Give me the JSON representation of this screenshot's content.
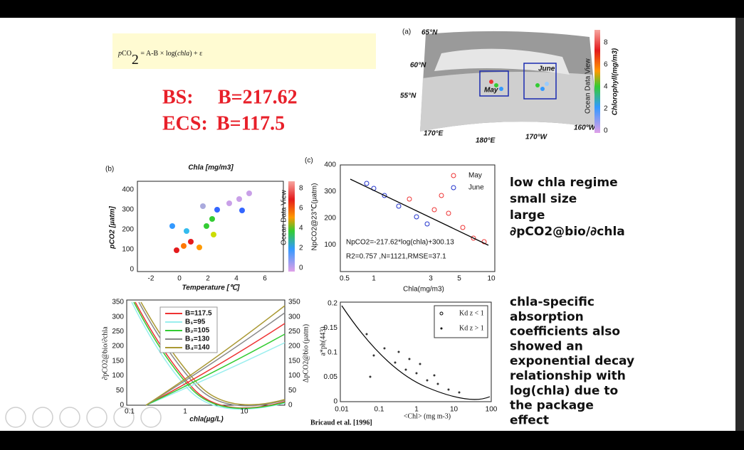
{
  "slide": {
    "formula": {
      "p": "p",
      "co": "CO",
      "sub": "2",
      "rest": " = A-B × log(",
      "chla": "chla",
      "end": ") + ε"
    },
    "coefficients": [
      {
        "label": "BS:",
        "value": "B=217.62"
      },
      {
        "label": "ECS:",
        "value": "B=117.5"
      }
    ],
    "panel_a": {
      "label": "(a)",
      "lat_labels": [
        "65°N",
        "60°N",
        "55°N"
      ],
      "lon_labels": [
        "170°E",
        "180°E",
        "170°W",
        "160°W"
      ],
      "box_labels": [
        "May",
        "June"
      ],
      "colorbar_title": "Chlorophyll(mg/m3)",
      "colorbar_ticks": [
        "8",
        "6",
        "4",
        "2",
        "0"
      ],
      "watermark": "Ocean Data View"
    },
    "panel_b": {
      "label": "(b)",
      "title": "Chla [mg/m3]",
      "ylabel": "pCO2 [µatm]",
      "xlabel": "Temperature [℃]",
      "yticks": [
        "400",
        "300",
        "200",
        "100",
        "0"
      ],
      "xticks": [
        "-2",
        "0",
        "2",
        "4",
        "6"
      ],
      "colorbar_ticks": [
        "8",
        "6",
        "4",
        "2",
        "0"
      ],
      "watermark": "Ocean Data View"
    },
    "panel_c": {
      "label": "(c)",
      "ylabel": "NpCO2@23℃(µatm)",
      "xlabel": "Chla(mg/m3)",
      "yticks": [
        "400",
        "300",
        "200",
        "100"
      ],
      "xticks": [
        "0.5",
        "1",
        "3",
        "5",
        "10"
      ],
      "legend": [
        "May",
        "June"
      ],
      "equation": "NpCO2=-217.62*log(chla)+300.13",
      "stats": "R2=0.757 ,N=1121,RMSE=37.1"
    },
    "panel_d": {
      "ylabel_left": "∂pCO2@bio/∂chla",
      "ylabel_right": "ΔpCO2@bio (µatm)",
      "xlabel": "chla(µg/L)",
      "yticks_left": [
        "350",
        "300",
        "250",
        "200",
        "150",
        "100",
        "50",
        "0"
      ],
      "yticks_right": [
        "350",
        "300",
        "250",
        "200",
        "150",
        "100",
        "50",
        "0"
      ],
      "xticks": [
        "0.1",
        "1",
        "10"
      ],
      "legend": [
        "B=117.5",
        "B₁=95",
        "B₂=105",
        "B₃=130",
        "B₄=140"
      ]
    },
    "panel_e": {
      "ylabel": "a*ph(443)",
      "xlabel": "<Chl> (mg m-3)",
      "yticks": [
        "0.2",
        "0.15",
        "0.1",
        "0.05",
        "0"
      ],
      "xticks": [
        "0.01",
        "0.1",
        "1",
        "10",
        "100"
      ],
      "legend": [
        "Kd z < 1",
        "Kd z > 1"
      ],
      "citation": "Bricaud et al. [1996]"
    },
    "notes": [
      [
        "low chla regime",
        "small size",
        "large",
        "∂pCO2@bio/∂chla"
      ],
      [
        "chla-specific",
        "absorption",
        "coefficients also",
        "showed an",
        "exponential decay",
        "relationship with",
        "log(chla) due to",
        "the package",
        "effect"
      ]
    ]
  }
}
